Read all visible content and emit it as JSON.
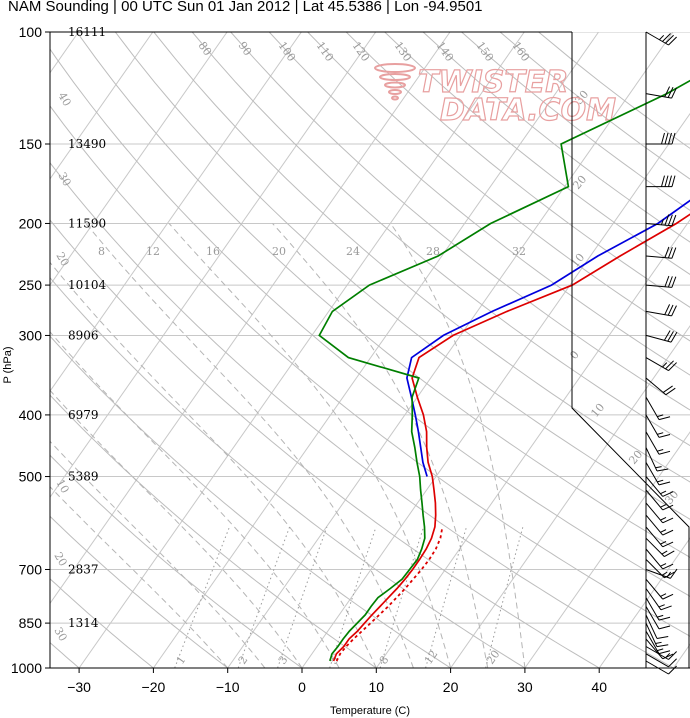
{
  "title": "NAM Sounding | 00 UTC Sun 01 Jan 2012 | Lat 45.5386 | Lon -94.9501",
  "watermark": {
    "line1": "TWISTER",
    "line2": "DATA.COM"
  },
  "chart_data": {
    "type": "line",
    "chart_kind": "skew-t log-p sounding",
    "xlabel": "Temperature (C)",
    "ylabel": "P (hPa)",
    "xlim": [
      -34,
      48
    ],
    "ylim": [
      1000,
      100
    ],
    "y_scale": "log",
    "x_ticks": [
      -30,
      -20,
      -10,
      0,
      10,
      20,
      30,
      40
    ],
    "x_tick_labels": [
      "−30",
      "−20",
      "−10",
      "0",
      "10",
      "20",
      "30",
      "40"
    ],
    "pressure_ticks": [
      100,
      150,
      200,
      250,
      300,
      400,
      500,
      700,
      850,
      1000
    ],
    "heights": [
      {
        "p": 100,
        "label": "16111"
      },
      {
        "p": 150,
        "label": "13490"
      },
      {
        "p": 200,
        "label": "11590"
      },
      {
        "p": 250,
        "label": "10104"
      },
      {
        "p": 300,
        "label": "8906"
      },
      {
        "p": 400,
        "label": "6979"
      },
      {
        "p": 500,
        "label": "5389"
      },
      {
        "p": 700,
        "label": "2837"
      },
      {
        "p": 850,
        "label": "1314"
      }
    ],
    "isotherm_labels": [
      {
        "t": 80,
        "label": "80"
      },
      {
        "t": 90,
        "label": "90"
      },
      {
        "t": 100,
        "label": "100"
      },
      {
        "t": 110,
        "label": "110"
      },
      {
        "t": 120,
        "label": "120"
      },
      {
        "t": 130,
        "label": "130"
      },
      {
        "t": 140,
        "label": "140"
      },
      {
        "t": 150,
        "label": "150"
      },
      {
        "t": 160,
        "label": "160"
      }
    ],
    "mixing_ratio_labels": [
      {
        "label": "8"
      },
      {
        "label": "12"
      },
      {
        "label": "16"
      },
      {
        "label": "20"
      },
      {
        "label": "24"
      },
      {
        "label": "28"
      },
      {
        "label": "32"
      }
    ],
    "bottom_labels": [
      {
        "label": "1"
      },
      {
        "label": "2"
      },
      {
        "label": "3"
      },
      {
        "label": "5"
      },
      {
        "label": "8"
      },
      {
        "label": "12"
      },
      {
        "label": "20"
      }
    ],
    "right_labels": [
      {
        "label": "30"
      },
      {
        "label": "20"
      },
      {
        "label": "10"
      },
      {
        "label": "0"
      },
      {
        "label": "10"
      },
      {
        "label": "20"
      },
      {
        "label": "30"
      }
    ],
    "left_labels": [
      {
        "label": "40"
      },
      {
        "label": "30"
      },
      {
        "label": "20"
      },
      {
        "label": "10"
      },
      {
        "label": "20"
      },
      {
        "label": "30"
      }
    ],
    "series": [
      {
        "name": "",
        "color": "#dd0000",
        "points": [
          [
            975,
            3.6
          ],
          [
            950,
            3.3
          ],
          [
            925,
            3.6
          ],
          [
            900,
            3.6
          ],
          [
            875,
            4.0
          ],
          [
            850,
            4.2
          ],
          [
            825,
            4.4
          ],
          [
            800,
            4.7
          ],
          [
            775,
            5.0
          ],
          [
            750,
            5.3
          ],
          [
            725,
            5.5
          ],
          [
            700,
            5.6
          ],
          [
            675,
            5.6
          ],
          [
            650,
            5.5
          ],
          [
            625,
            5.2
          ],
          [
            600,
            4.6
          ],
          [
            575,
            3.6
          ],
          [
            550,
            2.4
          ],
          [
            525,
            1.0
          ],
          [
            500,
            -0.5
          ],
          [
            475,
            -2.4
          ],
          [
            450,
            -4.0
          ],
          [
            425,
            -5.5
          ],
          [
            400,
            -7.5
          ],
          [
            375,
            -10.0
          ],
          [
            350,
            -12.5
          ],
          [
            325,
            -13.5
          ],
          [
            300,
            -11.0
          ],
          [
            275,
            -6.0
          ],
          [
            250,
            0.3
          ],
          [
            225,
            4.0
          ],
          [
            200,
            8.5
          ],
          [
            175,
            12.5
          ],
          [
            150,
            18.5
          ],
          [
            125,
            21.0
          ],
          [
            100,
            29.5
          ]
        ]
      },
      {
        "name": "",
        "color": "#0000dd",
        "points": [
          [
            500,
            -1.2
          ],
          [
            475,
            -3.1
          ],
          [
            450,
            -4.8
          ],
          [
            425,
            -6.6
          ],
          [
            400,
            -8.6
          ],
          [
            375,
            -10.8
          ],
          [
            350,
            -13.2
          ],
          [
            325,
            -14.5
          ],
          [
            300,
            -12.3
          ],
          [
            275,
            -8.0
          ],
          [
            250,
            -2.5
          ],
          [
            225,
            1.0
          ],
          [
            200,
            6.0
          ],
          [
            175,
            9.5
          ],
          [
            150,
            14.5
          ],
          [
            125,
            17.0
          ],
          [
            100,
            26.5
          ]
        ]
      },
      {
        "name": "",
        "color": "#dd0000",
        "dashed": true,
        "points": [
          [
            975,
            4.0
          ],
          [
            950,
            3.8
          ],
          [
            925,
            3.9
          ],
          [
            900,
            4.2
          ],
          [
            850,
            5.0
          ],
          [
            800,
            5.8
          ],
          [
            750,
            6.4
          ],
          [
            700,
            6.8
          ],
          [
            675,
            6.9
          ],
          [
            650,
            6.8
          ],
          [
            625,
            6.4
          ],
          [
            600,
            5.6
          ]
        ]
      },
      {
        "name": "",
        "color": "#007f00",
        "points": [
          [
            975,
            3.1
          ],
          [
            950,
            2.7
          ],
          [
            925,
            2.8
          ],
          [
            900,
            2.8
          ],
          [
            875,
            2.9
          ],
          [
            850,
            3.2
          ],
          [
            825,
            3.5
          ],
          [
            800,
            3.5
          ],
          [
            775,
            3.6
          ],
          [
            750,
            4.4
          ],
          [
            725,
            5.1
          ],
          [
            700,
            5.2
          ],
          [
            675,
            5.3
          ],
          [
            650,
            4.9
          ],
          [
            625,
            4.3
          ],
          [
            600,
            3.2
          ],
          [
            575,
            1.9
          ],
          [
            550,
            0.6
          ],
          [
            525,
            -0.8
          ],
          [
            500,
            -2.2
          ],
          [
            475,
            -3.9
          ],
          [
            450,
            -5.6
          ],
          [
            425,
            -7.5
          ],
          [
            400,
            -9.0
          ],
          [
            375,
            -10.7
          ],
          [
            350,
            -11.6
          ],
          [
            325,
            -23.0
          ],
          [
            300,
            -29.0
          ],
          [
            275,
            -29.5
          ],
          [
            250,
            -27.0
          ],
          [
            225,
            -20.5
          ],
          [
            200,
            -16.5
          ],
          [
            175,
            -9.5
          ],
          [
            150,
            -14.5
          ],
          [
            125,
            -5.0
          ],
          [
            100,
            4.0
          ]
        ]
      }
    ],
    "wind_barbs": [
      {
        "p": 100,
        "dir": 300,
        "spd": 35
      },
      {
        "p": 125,
        "dir": 280,
        "spd": 30
      },
      {
        "p": 150,
        "dir": 270,
        "spd": 40
      },
      {
        "p": 175,
        "dir": 270,
        "spd": 40
      },
      {
        "p": 200,
        "dir": 275,
        "spd": 35
      },
      {
        "p": 225,
        "dir": 275,
        "spd": 30
      },
      {
        "p": 250,
        "dir": 275,
        "spd": 30
      },
      {
        "p": 275,
        "dir": 280,
        "spd": 30
      },
      {
        "p": 300,
        "dir": 285,
        "spd": 30
      },
      {
        "p": 325,
        "dir": 300,
        "spd": 25
      },
      {
        "p": 350,
        "dir": 310,
        "spd": 20
      },
      {
        "p": 375,
        "dir": 330,
        "spd": 15
      },
      {
        "p": 400,
        "dir": 330,
        "spd": 15
      },
      {
        "p": 425,
        "dir": 330,
        "spd": 15
      },
      {
        "p": 450,
        "dir": 335,
        "spd": 15
      },
      {
        "p": 475,
        "dir": 330,
        "spd": 15
      },
      {
        "p": 500,
        "dir": 320,
        "spd": 15
      },
      {
        "p": 525,
        "dir": 320,
        "spd": 15
      },
      {
        "p": 550,
        "dir": 320,
        "spd": 15
      },
      {
        "p": 575,
        "dir": 320,
        "spd": 15
      },
      {
        "p": 600,
        "dir": 320,
        "spd": 15
      },
      {
        "p": 625,
        "dir": 315,
        "spd": 15
      },
      {
        "p": 650,
        "dir": 320,
        "spd": 15
      },
      {
        "p": 675,
        "dir": 315,
        "spd": 15
      },
      {
        "p": 700,
        "dir": 290,
        "spd": 15
      },
      {
        "p": 725,
        "dir": 320,
        "spd": 15
      },
      {
        "p": 750,
        "dir": 325,
        "spd": 15
      },
      {
        "p": 775,
        "dir": 330,
        "spd": 15
      },
      {
        "p": 800,
        "dir": 330,
        "spd": 10
      },
      {
        "p": 825,
        "dir": 335,
        "spd": 10
      },
      {
        "p": 850,
        "dir": 335,
        "spd": 15
      },
      {
        "p": 875,
        "dir": 330,
        "spd": 15
      },
      {
        "p": 900,
        "dir": 320,
        "spd": 10
      },
      {
        "p": 925,
        "dir": 300,
        "spd": 15
      },
      {
        "p": 950,
        "dir": 300,
        "spd": 10
      },
      {
        "p": 975,
        "dir": 300,
        "spd": 10
      }
    ]
  }
}
